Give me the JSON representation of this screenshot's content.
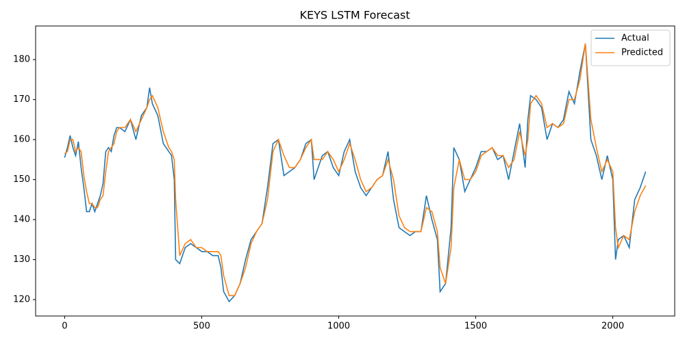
{
  "chart_data": {
    "type": "line",
    "title": "KEYS LSTM Forecast",
    "x": [
      0,
      10,
      20,
      30,
      40,
      50,
      60,
      70,
      80,
      90,
      100,
      110,
      120,
      130,
      140,
      150,
      160,
      170,
      180,
      190,
      200,
      220,
      240,
      260,
      280,
      300,
      310,
      320,
      340,
      360,
      380,
      390,
      400,
      405,
      420,
      440,
      460,
      480,
      500,
      520,
      540,
      560,
      570,
      580,
      600,
      620,
      640,
      660,
      680,
      700,
      720,
      740,
      760,
      780,
      800,
      820,
      840,
      860,
      880,
      900,
      910,
      940,
      960,
      980,
      1000,
      1020,
      1040,
      1060,
      1080,
      1100,
      1120,
      1140,
      1160,
      1180,
      1200,
      1220,
      1240,
      1260,
      1280,
      1300,
      1320,
      1340,
      1360,
      1370,
      1390,
      1410,
      1420,
      1440,
      1460,
      1480,
      1500,
      1520,
      1540,
      1560,
      1580,
      1600,
      1620,
      1640,
      1660,
      1680,
      1690,
      1700,
      1720,
      1740,
      1760,
      1780,
      1800,
      1820,
      1840,
      1860,
      1880,
      1900,
      1920,
      1940,
      1960,
      1980,
      2000,
      2010,
      2020,
      2040,
      2060,
      2080,
      2100,
      2120
    ],
    "series": [
      {
        "name": "Actual",
        "color": "#1f77b4",
        "values": [
          155.5,
          158,
          161,
          158,
          156,
          159.5,
          153,
          148,
          142,
          142,
          144,
          142,
          144,
          146,
          149,
          157,
          158,
          157,
          161,
          163,
          163,
          162,
          165,
          160,
          166,
          168,
          173,
          169,
          166,
          159,
          157,
          156,
          150,
          130,
          129,
          133,
          134,
          133,
          132,
          132,
          131,
          131,
          128,
          122,
          119.5,
          121,
          124,
          130,
          135,
          137,
          139,
          148,
          159,
          160,
          151,
          152,
          153,
          155,
          159,
          160,
          150,
          156,
          157,
          153,
          151,
          157,
          160,
          152,
          148,
          146,
          148,
          150,
          151,
          157,
          145,
          138,
          137,
          136,
          137,
          137,
          146,
          140,
          135,
          122,
          124,
          138,
          158,
          155,
          147,
          150,
          153,
          157,
          157,
          158,
          155,
          156,
          150,
          157,
          164,
          153,
          165,
          171,
          170,
          168,
          160,
          164,
          163,
          165,
          172,
          169,
          177,
          184,
          160,
          156,
          150,
          156,
          150,
          130,
          135,
          136,
          133,
          145,
          148,
          152
        ]
      },
      {
        "name": "Predicted",
        "color": "#ff7f0e",
        "values": [
          156.5,
          157,
          160,
          160,
          157,
          158,
          157,
          151,
          147,
          144,
          144,
          143,
          143,
          145,
          146,
          152,
          157,
          158,
          159,
          162,
          163,
          163,
          165,
          162,
          165,
          168,
          170,
          171,
          168,
          162,
          158,
          157,
          155,
          145,
          131,
          134,
          135,
          133,
          133,
          132,
          132,
          132,
          131,
          126,
          121,
          121,
          124,
          128,
          134,
          137,
          139,
          145,
          157,
          160,
          156,
          153,
          153,
          155,
          158,
          160,
          155,
          155,
          157,
          155,
          152,
          155,
          159,
          155,
          150,
          147,
          148,
          150,
          151,
          155,
          150,
          141,
          138,
          137,
          137,
          137,
          143,
          142,
          137,
          128,
          124,
          133,
          148,
          155,
          150,
          150,
          152,
          156,
          157,
          158,
          156,
          156,
          153,
          155,
          162,
          156,
          160,
          169,
          171,
          169,
          163,
          164,
          163,
          164,
          170,
          170,
          175,
          184,
          165,
          158,
          152,
          155,
          152,
          138,
          133,
          136,
          135,
          142,
          146,
          148.5
        ]
      }
    ],
    "xlim": [
      -106,
      2226
    ],
    "ylim": [
      115.9,
      188.4
    ],
    "xticks": [
      0,
      500,
      1000,
      1500,
      2000
    ],
    "yticks": [
      120,
      130,
      140,
      150,
      160,
      170,
      180
    ],
    "legend": "upper right"
  }
}
